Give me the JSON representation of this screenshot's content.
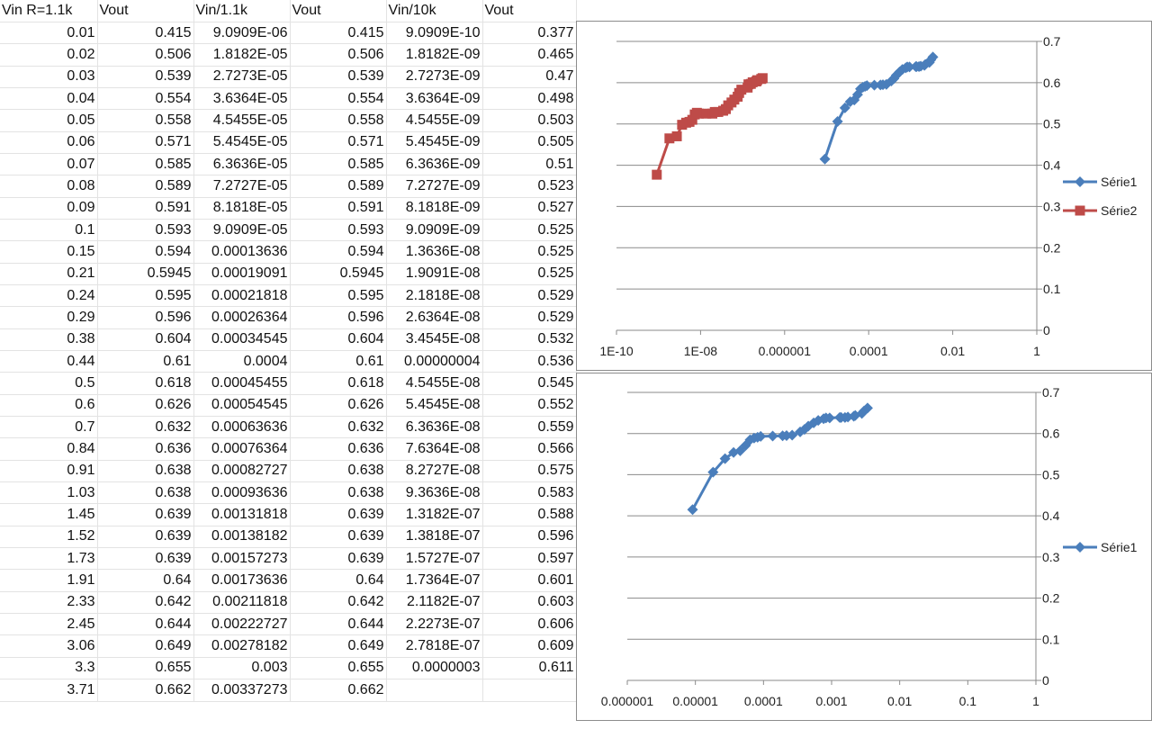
{
  "sheet": {
    "headers": [
      "Vin R=1.1k",
      "Vout",
      "Vin/1.1k",
      "Vout",
      "Vin/10k",
      "Vout"
    ],
    "rows": [
      [
        "0.01",
        "0.415",
        "9.0909E-06",
        "0.415",
        "9.0909E-10",
        "0.377"
      ],
      [
        "0.02",
        "0.506",
        "1.8182E-05",
        "0.506",
        "1.8182E-09",
        "0.465"
      ],
      [
        "0.03",
        "0.539",
        "2.7273E-05",
        "0.539",
        "2.7273E-09",
        "0.47"
      ],
      [
        "0.04",
        "0.554",
        "3.6364E-05",
        "0.554",
        "3.6364E-09",
        "0.498"
      ],
      [
        "0.05",
        "0.558",
        "4.5455E-05",
        "0.558",
        "4.5455E-09",
        "0.503"
      ],
      [
        "0.06",
        "0.571",
        "5.4545E-05",
        "0.571",
        "5.4545E-09",
        "0.505"
      ],
      [
        "0.07",
        "0.585",
        "6.3636E-05",
        "0.585",
        "6.3636E-09",
        "0.51"
      ],
      [
        "0.08",
        "0.589",
        "7.2727E-05",
        "0.589",
        "7.2727E-09",
        "0.523"
      ],
      [
        "0.09",
        "0.591",
        "8.1818E-05",
        "0.591",
        "8.1818E-09",
        "0.527"
      ],
      [
        "0.1",
        "0.593",
        "9.0909E-05",
        "0.593",
        "9.0909E-09",
        "0.525"
      ],
      [
        "0.15",
        "0.594",
        "0.00013636",
        "0.594",
        "1.3636E-08",
        "0.525"
      ],
      [
        "0.21",
        "0.5945",
        "0.00019091",
        "0.5945",
        "1.9091E-08",
        "0.525"
      ],
      [
        "0.24",
        "0.595",
        "0.00021818",
        "0.595",
        "2.1818E-08",
        "0.529"
      ],
      [
        "0.29",
        "0.596",
        "0.00026364",
        "0.596",
        "2.6364E-08",
        "0.529"
      ],
      [
        "0.38",
        "0.604",
        "0.00034545",
        "0.604",
        "3.4545E-08",
        "0.532"
      ],
      [
        "0.44",
        "0.61",
        "0.0004",
        "0.61",
        "0.00000004",
        "0.536"
      ],
      [
        "0.5",
        "0.618",
        "0.00045455",
        "0.618",
        "4.5455E-08",
        "0.545"
      ],
      [
        "0.6",
        "0.626",
        "0.00054545",
        "0.626",
        "5.4545E-08",
        "0.552"
      ],
      [
        "0.7",
        "0.632",
        "0.00063636",
        "0.632",
        "6.3636E-08",
        "0.559"
      ],
      [
        "0.84",
        "0.636",
        "0.00076364",
        "0.636",
        "7.6364E-08",
        "0.566"
      ],
      [
        "0.91",
        "0.638",
        "0.00082727",
        "0.638",
        "8.2727E-08",
        "0.575"
      ],
      [
        "1.03",
        "0.638",
        "0.00093636",
        "0.638",
        "9.3636E-08",
        "0.583"
      ],
      [
        "1.45",
        "0.639",
        "0.00131818",
        "0.639",
        "1.3182E-07",
        "0.588"
      ],
      [
        "1.52",
        "0.639",
        "0.00138182",
        "0.639",
        "1.3818E-07",
        "0.596"
      ],
      [
        "1.73",
        "0.639",
        "0.00157273",
        "0.639",
        "1.5727E-07",
        "0.597"
      ],
      [
        "1.91",
        "0.64",
        "0.00173636",
        "0.64",
        "1.7364E-07",
        "0.601"
      ],
      [
        "2.33",
        "0.642",
        "0.00211818",
        "0.642",
        "2.1182E-07",
        "0.603"
      ],
      [
        "2.45",
        "0.644",
        "0.00222727",
        "0.644",
        "2.2273E-07",
        "0.606"
      ],
      [
        "3.06",
        "0.649",
        "0.00278182",
        "0.649",
        "2.7818E-07",
        "0.609"
      ],
      [
        "3.3",
        "0.655",
        "0.003",
        "0.655",
        "0.0000003",
        "0.611"
      ],
      [
        "3.71",
        "0.662",
        "0.00337273",
        "0.662",
        "",
        ""
      ]
    ]
  },
  "chart_data": [
    {
      "type": "scatter",
      "xscale": "log",
      "xlim": [
        1e-10,
        1
      ],
      "ylim": [
        0,
        0.7
      ],
      "xticks": [
        "1E-10",
        "1E-08",
        "0.000001",
        "0.0001",
        "0.01",
        "1"
      ],
      "yticks": [
        "0",
        "0.1",
        "0.2",
        "0.3",
        "0.4",
        "0.5",
        "0.6",
        "0.7"
      ],
      "grid": true,
      "legend": "right",
      "series": [
        {
          "name": "Série1",
          "color": "#4a7ebb",
          "marker": "diamond",
          "x": [
            9.0909e-06,
            1.8182e-05,
            2.7273e-05,
            3.6364e-05,
            4.5455e-05,
            5.4545e-05,
            6.3636e-05,
            7.2727e-05,
            8.1818e-05,
            9.0909e-05,
            0.00013636,
            0.00019091,
            0.00021818,
            0.00026364,
            0.00034545,
            0.0004,
            0.00045455,
            0.00054545,
            0.00063636,
            0.00076364,
            0.00082727,
            0.00093636,
            0.00131818,
            0.00138182,
            0.00157273,
            0.00173636,
            0.00211818,
            0.00222727,
            0.00278182,
            0.003,
            0.00337273
          ],
          "y": [
            0.415,
            0.506,
            0.539,
            0.554,
            0.558,
            0.571,
            0.585,
            0.589,
            0.591,
            0.593,
            0.594,
            0.5945,
            0.595,
            0.596,
            0.604,
            0.61,
            0.618,
            0.626,
            0.632,
            0.636,
            0.638,
            0.638,
            0.639,
            0.639,
            0.639,
            0.64,
            0.642,
            0.644,
            0.649,
            0.655,
            0.662
          ]
        },
        {
          "name": "Série2",
          "color": "#be4b48",
          "marker": "square",
          "x": [
            9.0909e-10,
            1.8182e-09,
            2.7273e-09,
            3.6364e-09,
            4.5455e-09,
            5.4545e-09,
            6.3636e-09,
            7.2727e-09,
            8.1818e-09,
            9.0909e-09,
            1.3636e-08,
            1.9091e-08,
            2.1818e-08,
            2.6364e-08,
            3.4545e-08,
            4e-08,
            4.5455e-08,
            5.4545e-08,
            6.3636e-08,
            7.6364e-08,
            8.2727e-08,
            9.3636e-08,
            1.3182e-07,
            1.3818e-07,
            1.5727e-07,
            1.7364e-07,
            2.1182e-07,
            2.2273e-07,
            2.7818e-07,
            3e-07
          ],
          "y": [
            0.377,
            0.465,
            0.47,
            0.498,
            0.503,
            0.505,
            0.51,
            0.523,
            0.527,
            0.525,
            0.525,
            0.525,
            0.529,
            0.529,
            0.532,
            0.536,
            0.545,
            0.552,
            0.559,
            0.566,
            0.575,
            0.583,
            0.588,
            0.596,
            0.597,
            0.601,
            0.603,
            0.606,
            0.609,
            0.611
          ]
        }
      ]
    },
    {
      "type": "scatter",
      "xscale": "log",
      "xlim": [
        1e-06,
        1
      ],
      "ylim": [
        0,
        0.7
      ],
      "xticks": [
        "0.000001",
        "0.00001",
        "0.0001",
        "0.001",
        "0.01",
        "0.1",
        "1"
      ],
      "yticks": [
        "0",
        "0.1",
        "0.2",
        "0.3",
        "0.4",
        "0.5",
        "0.6",
        "0.7"
      ],
      "grid": true,
      "legend": "right",
      "series": [
        {
          "name": "Série1",
          "color": "#4a7ebb",
          "marker": "diamond",
          "x": [
            9.0909e-06,
            1.8182e-05,
            2.7273e-05,
            3.6364e-05,
            4.5455e-05,
            5.4545e-05,
            6.3636e-05,
            7.2727e-05,
            8.1818e-05,
            9.0909e-05,
            0.00013636,
            0.00019091,
            0.00021818,
            0.00026364,
            0.00034545,
            0.0004,
            0.00045455,
            0.00054545,
            0.00063636,
            0.00076364,
            0.00082727,
            0.00093636,
            0.00131818,
            0.00138182,
            0.00157273,
            0.00173636,
            0.00211818,
            0.00222727,
            0.00278182,
            0.003,
            0.00337273
          ],
          "y": [
            0.415,
            0.506,
            0.539,
            0.554,
            0.558,
            0.571,
            0.585,
            0.589,
            0.591,
            0.593,
            0.594,
            0.5945,
            0.595,
            0.596,
            0.604,
            0.61,
            0.618,
            0.626,
            0.632,
            0.636,
            0.638,
            0.638,
            0.639,
            0.639,
            0.639,
            0.64,
            0.642,
            0.644,
            0.649,
            0.655,
            0.662
          ]
        }
      ]
    }
  ]
}
